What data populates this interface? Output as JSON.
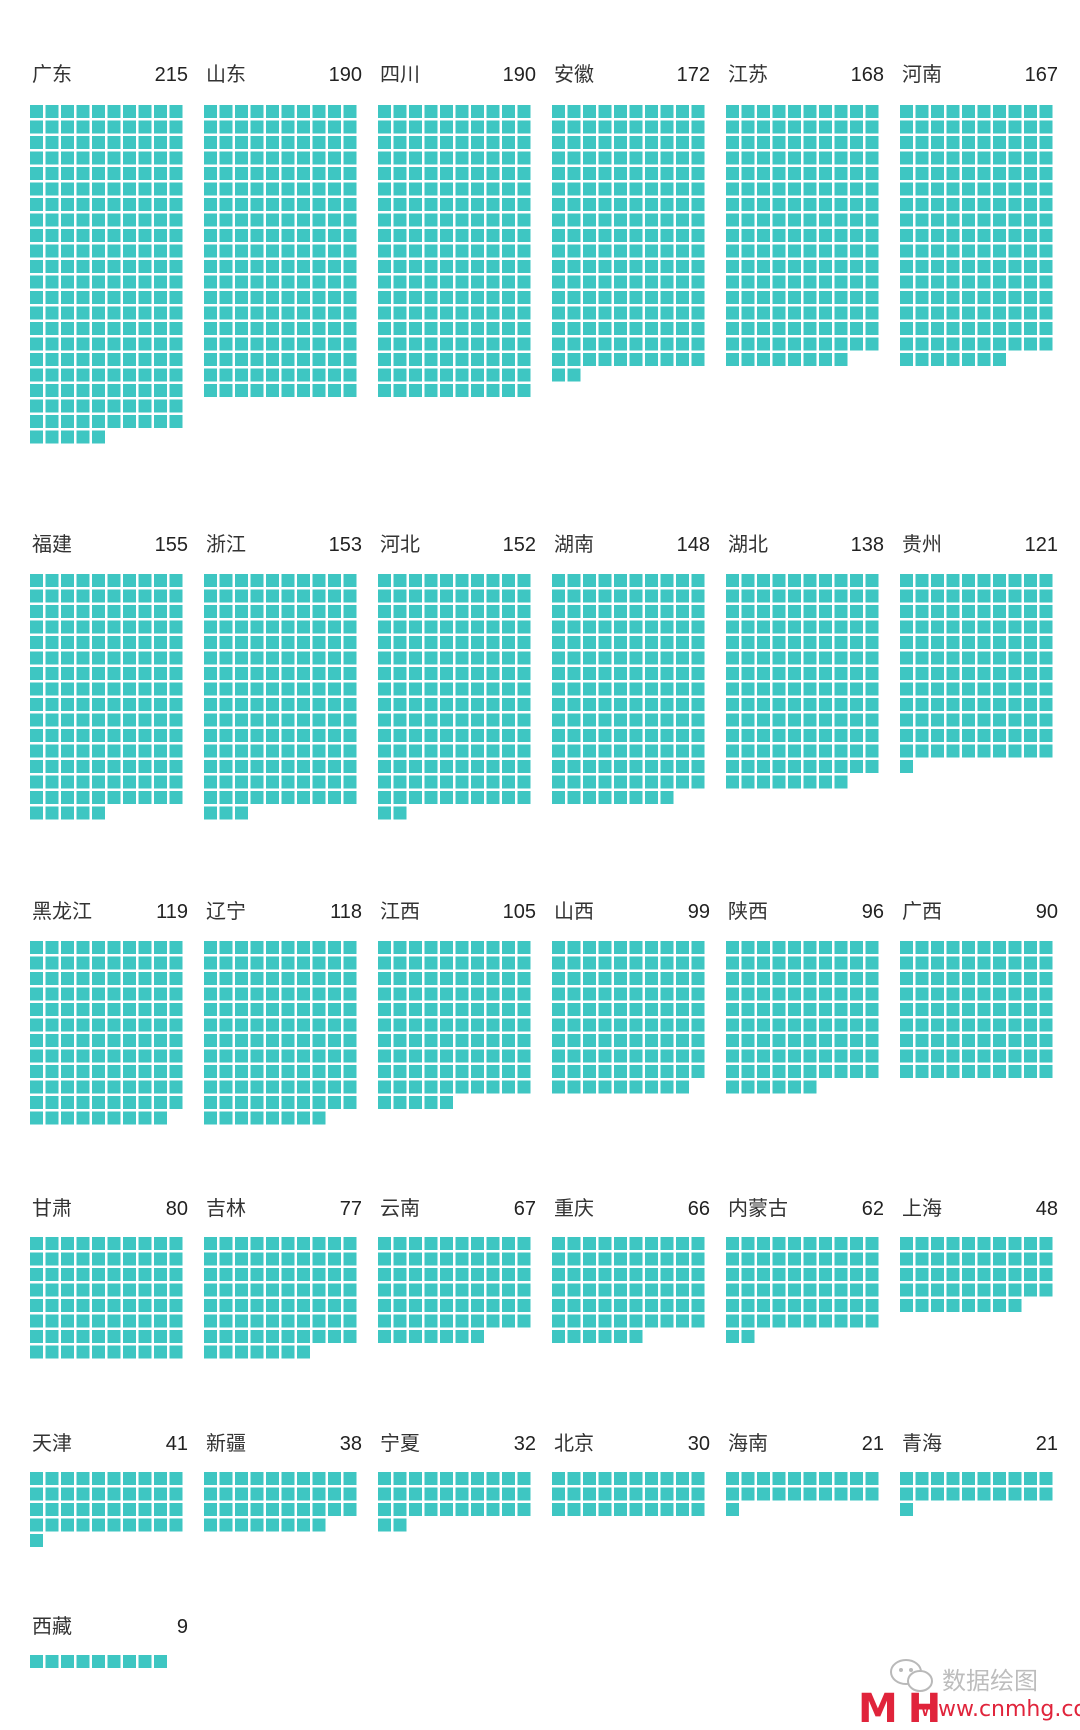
{
  "chart_data": {
    "type": "waffle",
    "units_per_row": 10,
    "cell_color": "#3ec6c2",
    "series": [
      {
        "name": "广东",
        "value": 215
      },
      {
        "name": "山东",
        "value": 190
      },
      {
        "name": "四川",
        "value": 190
      },
      {
        "name": "安徽",
        "value": 172
      },
      {
        "name": "江苏",
        "value": 168
      },
      {
        "name": "河南",
        "value": 167
      },
      {
        "name": "福建",
        "value": 155
      },
      {
        "name": "浙江",
        "value": 153
      },
      {
        "name": "河北",
        "value": 152
      },
      {
        "name": "湖南",
        "value": 148
      },
      {
        "name": "湖北",
        "value": 138
      },
      {
        "name": "贵州",
        "value": 121
      },
      {
        "name": "黑龙江",
        "value": 119
      },
      {
        "name": "辽宁",
        "value": 118
      },
      {
        "name": "江西",
        "value": 105
      },
      {
        "name": "山西",
        "value": 99
      },
      {
        "name": "陕西",
        "value": 96
      },
      {
        "name": "广西",
        "value": 90
      },
      {
        "name": "甘肃",
        "value": 80
      },
      {
        "name": "吉林",
        "value": 77
      },
      {
        "name": "云南",
        "value": 67
      },
      {
        "name": "重庆",
        "value": 66
      },
      {
        "name": "内蒙古",
        "value": 62
      },
      {
        "name": "上海",
        "value": 48
      },
      {
        "name": "天津",
        "value": 41
      },
      {
        "name": "新疆",
        "value": 38
      },
      {
        "name": "宁夏",
        "value": 32
      },
      {
        "name": "北京",
        "value": 30
      },
      {
        "name": "海南",
        "value": 21
      },
      {
        "name": "青海",
        "value": 21
      },
      {
        "name": "西藏",
        "value": 9
      }
    ]
  },
  "watermark": {
    "wechat_label": "数据绘图",
    "logo_text": "M H",
    "url": "www.cnmhg.com",
    "logo_color": "#e0243b",
    "icon": "wechat-icon"
  }
}
